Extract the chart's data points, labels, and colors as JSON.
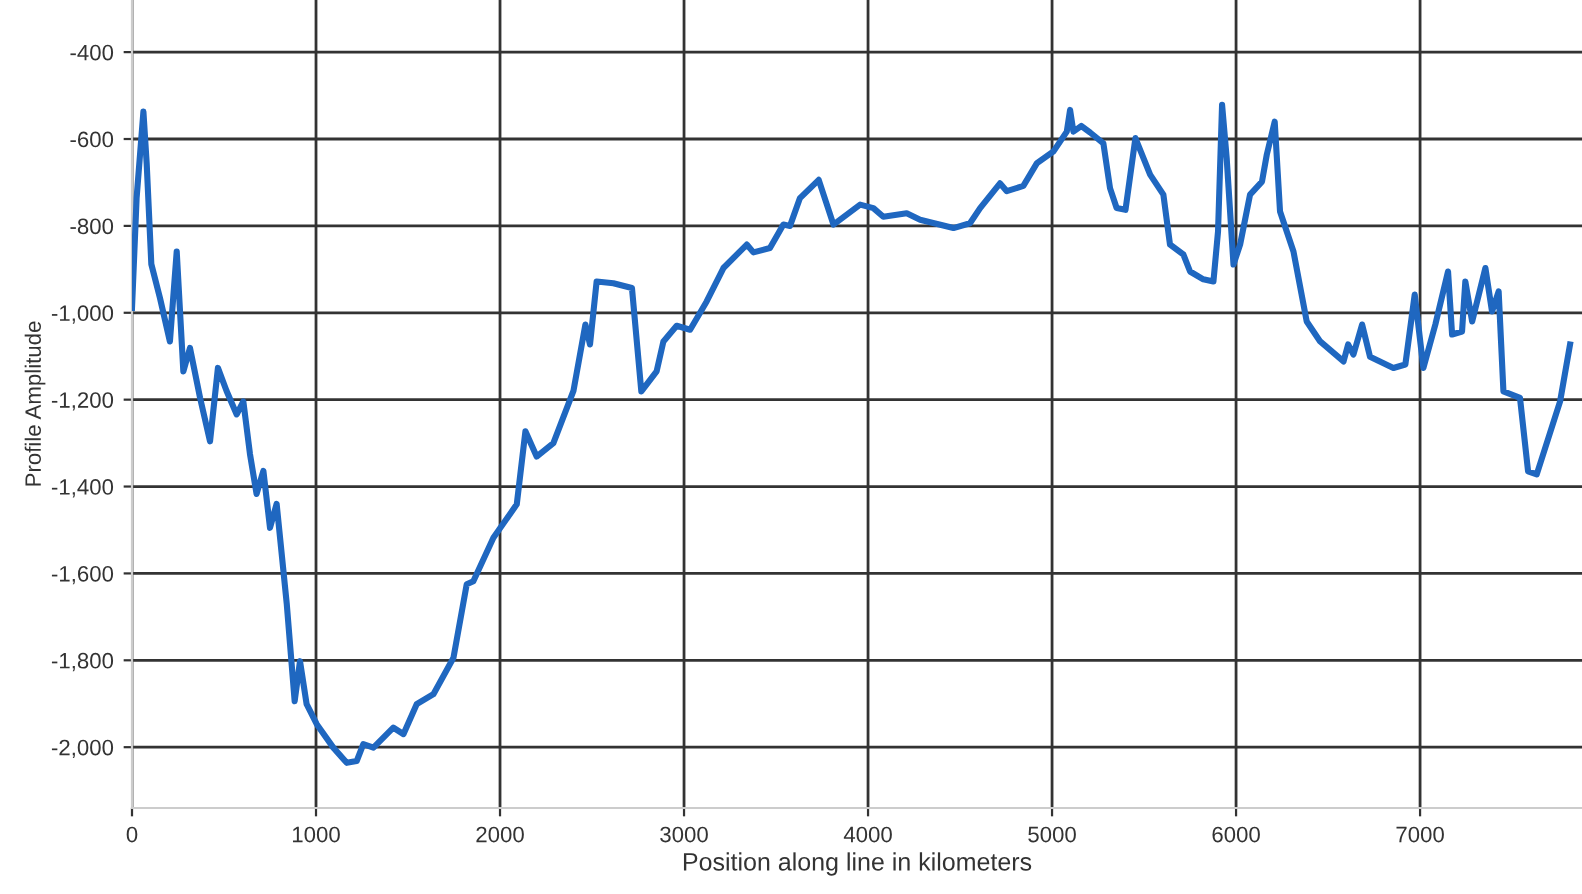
{
  "chart_data": {
    "type": "line",
    "xlabel": "Position along line in kilometers",
    "ylabel": "Profile Amplitude",
    "xlim": [
      0,
      7880
    ],
    "xticks": [
      0,
      1000,
      2000,
      3000,
      4000,
      5000,
      6000,
      7000
    ],
    "ylim": [
      -2140,
      -280
    ],
    "yticks": [
      {
        "value": -400,
        "label": "-400"
      },
      {
        "value": -600,
        "label": "-600"
      },
      {
        "value": -800,
        "label": "-800"
      },
      {
        "value": -1000,
        "label": "-1,000"
      },
      {
        "value": -1200,
        "label": "-1,200"
      },
      {
        "value": -1400,
        "label": "-1,400"
      },
      {
        "value": -1600,
        "label": "-1,600"
      },
      {
        "value": -1800,
        "label": "-1,800"
      },
      {
        "value": -2000,
        "label": "-2,000"
      }
    ],
    "grid": true,
    "marker": "none",
    "line_style": "solid",
    "series": [
      {
        "color": "#1f67c0",
        "x": [
          0,
          25,
          62,
          80,
          105,
          152,
          206,
          243,
          279,
          315,
          370,
          424,
          467,
          514,
          569,
          605,
          641,
          677,
          714,
          750,
          786,
          841,
          884,
          913,
          949,
          1004,
          1094,
          1167,
          1221,
          1257,
          1312,
          1420,
          1475,
          1547,
          1638,
          1747,
          1819,
          1855,
          1964,
          2091,
          2138,
          2199,
          2290,
          2399,
          2464,
          2489,
          2525,
          2616,
          2717,
          2768,
          2851,
          2888,
          2960,
          3033,
          3123,
          3214,
          3341,
          3377,
          3467,
          3540,
          3576,
          3630,
          3732,
          3812,
          3957,
          4029,
          4083,
          4210,
          4283,
          4464,
          4554,
          4609,
          4717,
          4754,
          4844,
          4917,
          5007,
          5080,
          5098,
          5116,
          5159,
          5207,
          5279,
          5315,
          5351,
          5399,
          5453,
          5533,
          5605,
          5641,
          5714,
          5750,
          5822,
          5877,
          5902,
          5924,
          5949,
          5986,
          6022,
          6076,
          6141,
          6167,
          6210,
          6239,
          6312,
          6384,
          6457,
          6584,
          6609,
          6638,
          6685,
          6728,
          6855,
          6920,
          6971,
          7018,
          7083,
          7152,
          7174,
          7228,
          7246,
          7283,
          7355,
          7391,
          7427,
          7453,
          7543,
          7587,
          7634,
          7761,
          7815
        ],
        "values": [
          -989,
          -736,
          -537,
          -658,
          -888,
          -966,
          -1066,
          -859,
          -1135,
          -1081,
          -1196,
          -1296,
          -1127,
          -1180,
          -1234,
          -1204,
          -1325,
          -1417,
          -1364,
          -1495,
          -1440,
          -1670,
          -1894,
          -1802,
          -1901,
          -1947,
          -2001,
          -2036,
          -2032,
          -1993,
          -2001,
          -1955,
          -1970,
          -1901,
          -1878,
          -1794,
          -1625,
          -1618,
          -1518,
          -1441,
          -1273,
          -1331,
          -1300,
          -1180,
          -1027,
          -1073,
          -928,
          -932,
          -943,
          -1181,
          -1135,
          -1066,
          -1030,
          -1039,
          -974,
          -897,
          -843,
          -861,
          -851,
          -797,
          -800,
          -736,
          -694,
          -797,
          -751,
          -759,
          -779,
          -771,
          -786,
          -805,
          -794,
          -759,
          -702,
          -720,
          -708,
          -656,
          -629,
          -583,
          -533,
          -583,
          -570,
          -585,
          -610,
          -713,
          -759,
          -763,
          -598,
          -682,
          -728,
          -843,
          -866,
          -905,
          -923,
          -928,
          -813,
          -521,
          -644,
          -889,
          -843,
          -728,
          -698,
          -636,
          -560,
          -767,
          -859,
          -1020,
          -1066,
          -1112,
          -1073,
          -1096,
          -1027,
          -1101,
          -1127,
          -1119,
          -958,
          -1127,
          -1027,
          -905,
          -1050,
          -1043,
          -928,
          -1020,
          -897,
          -997,
          -951,
          -1181,
          -1196,
          -1365,
          -1372,
          -1204,
          -1073
        ]
      }
    ]
  }
}
